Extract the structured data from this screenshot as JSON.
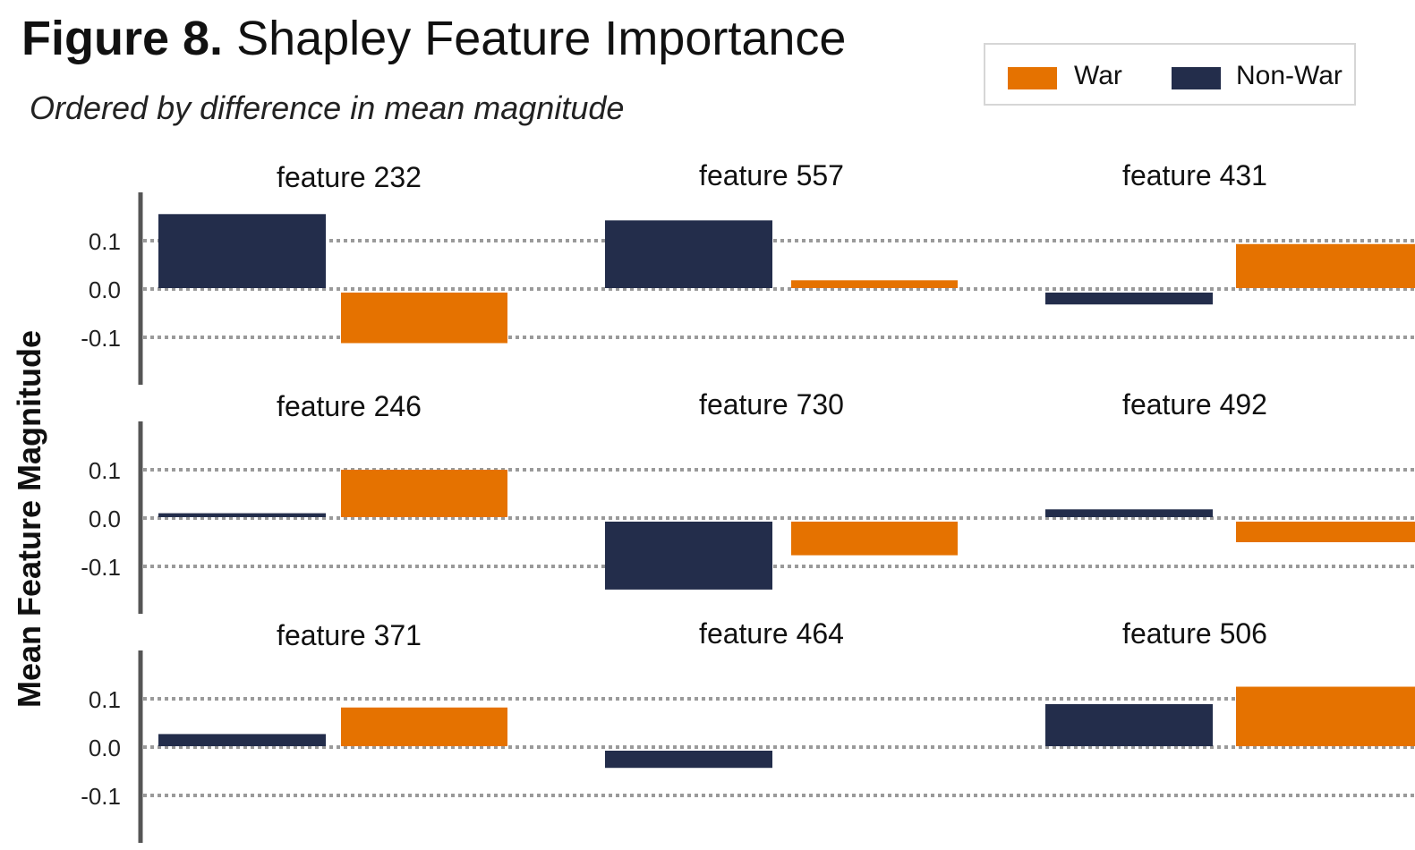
{
  "title": {
    "figure": "Figure 8.",
    "text": "Shapley Feature Importance"
  },
  "subtitle": "Ordered by difference in mean magnitude",
  "legend": {
    "items": [
      {
        "label": "War",
        "color": "#E57200"
      },
      {
        "label": "Non-War",
        "color": "#232D4B"
      }
    ],
    "placement": "top-right"
  },
  "colors": {
    "war": "#E57200",
    "non_war": "#232D4B",
    "axis": "#555555",
    "grid": "#9a9a9a"
  },
  "chart_data": {
    "type": "bar",
    "layout": "small-multiples 3x3",
    "ylabel": "Mean Feature Magnitude",
    "yticks": [
      0.1,
      0.0,
      -0.1
    ],
    "ytick_labels": [
      "0.1",
      "0.0",
      "-0.1"
    ],
    "ylim": [
      -0.2,
      0.2
    ],
    "grid": true,
    "series_order": [
      "Non-War",
      "War"
    ],
    "panels": [
      {
        "title": "feature 232",
        "values": {
          "Non-War": 0.155,
          "War": -0.112
        }
      },
      {
        "title": "feature 557",
        "values": {
          "Non-War": 0.142,
          "War": 0.018
        }
      },
      {
        "title": "feature 431",
        "values": {
          "Non-War": -0.032,
          "War": 0.093
        }
      },
      {
        "title": "feature 246",
        "values": {
          "Non-War": 0.01,
          "War": 0.1
        }
      },
      {
        "title": "feature 730",
        "values": {
          "Non-War": -0.148,
          "War": -0.077
        }
      },
      {
        "title": "feature 492",
        "values": {
          "Non-War": 0.018,
          "War": -0.05
        }
      },
      {
        "title": "feature 371",
        "values": {
          "Non-War": 0.027,
          "War": 0.082
        }
      },
      {
        "title": "feature 464",
        "values": {
          "Non-War": -0.043,
          "War": null
        }
      },
      {
        "title": "feature 506",
        "values": {
          "Non-War": 0.089,
          "War": 0.125
        }
      }
    ]
  }
}
